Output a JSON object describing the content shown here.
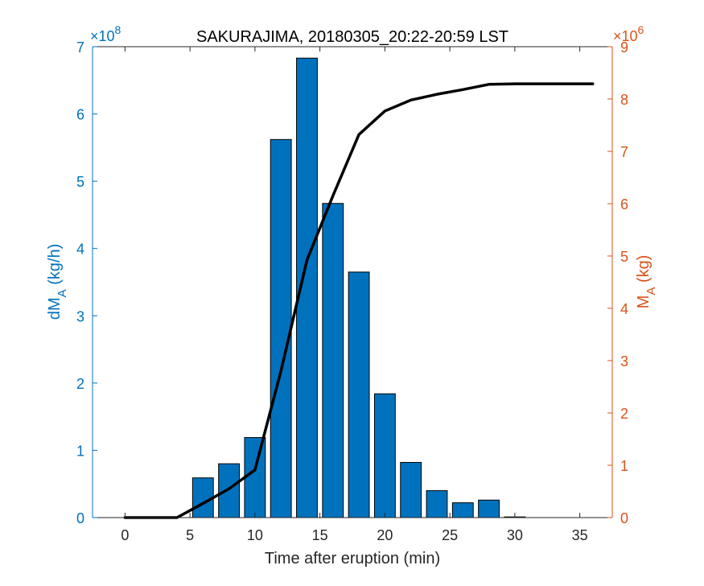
{
  "chart_data": {
    "type": "bar",
    "title": "SAKURAJIMA, 20180305_20:22-20:59 LST",
    "xlabel": "Time after eruption (min)",
    "xlim": [
      -2.5,
      37.5
    ],
    "xticks": [
      0,
      5,
      10,
      15,
      20,
      25,
      30,
      35
    ],
    "y_left": {
      "label_main": "dM",
      "label_sub": "A",
      "label_unit": " (kg/h)",
      "exponent_base": "×10",
      "exponent": "8",
      "ylim": [
        0,
        7
      ],
      "ticks": [
        0,
        1,
        2,
        3,
        4,
        5,
        6,
        7
      ],
      "color": "#0072BD"
    },
    "y_right": {
      "label_main": "M",
      "label_sub": "A",
      "label_unit": " (kg)",
      "exponent_base": "×10",
      "exponent": "6",
      "ylim": [
        0,
        9
      ],
      "ticks": [
        0,
        1,
        2,
        3,
        4,
        5,
        6,
        7,
        8,
        9
      ],
      "color": "#D95319"
    },
    "series": [
      {
        "type": "bar",
        "axis": "left",
        "color": "#0072BD",
        "x": [
          0,
          2,
          4,
          6,
          8,
          10,
          12,
          14,
          16,
          18,
          20,
          22,
          24,
          26,
          28,
          30
        ],
        "values": [
          0,
          0,
          0,
          0.59,
          0.8,
          1.19,
          5.62,
          6.83,
          4.67,
          3.65,
          1.84,
          0.82,
          0.4,
          0.22,
          0.26,
          0.01
        ]
      },
      {
        "type": "line",
        "axis": "right",
        "color": "#000000",
        "x": [
          0,
          2,
          4,
          6,
          8,
          10,
          12,
          14,
          16,
          18,
          20,
          22,
          24,
          26,
          28,
          30,
          32,
          34,
          36
        ],
        "values": [
          0,
          0,
          0,
          0.27,
          0.55,
          0.91,
          2.8,
          4.92,
          6.15,
          7.32,
          7.77,
          7.98,
          8.09,
          8.18,
          8.28,
          8.29,
          8.29,
          8.29,
          8.29
        ]
      }
    ],
    "grid": false,
    "legend": "none"
  }
}
